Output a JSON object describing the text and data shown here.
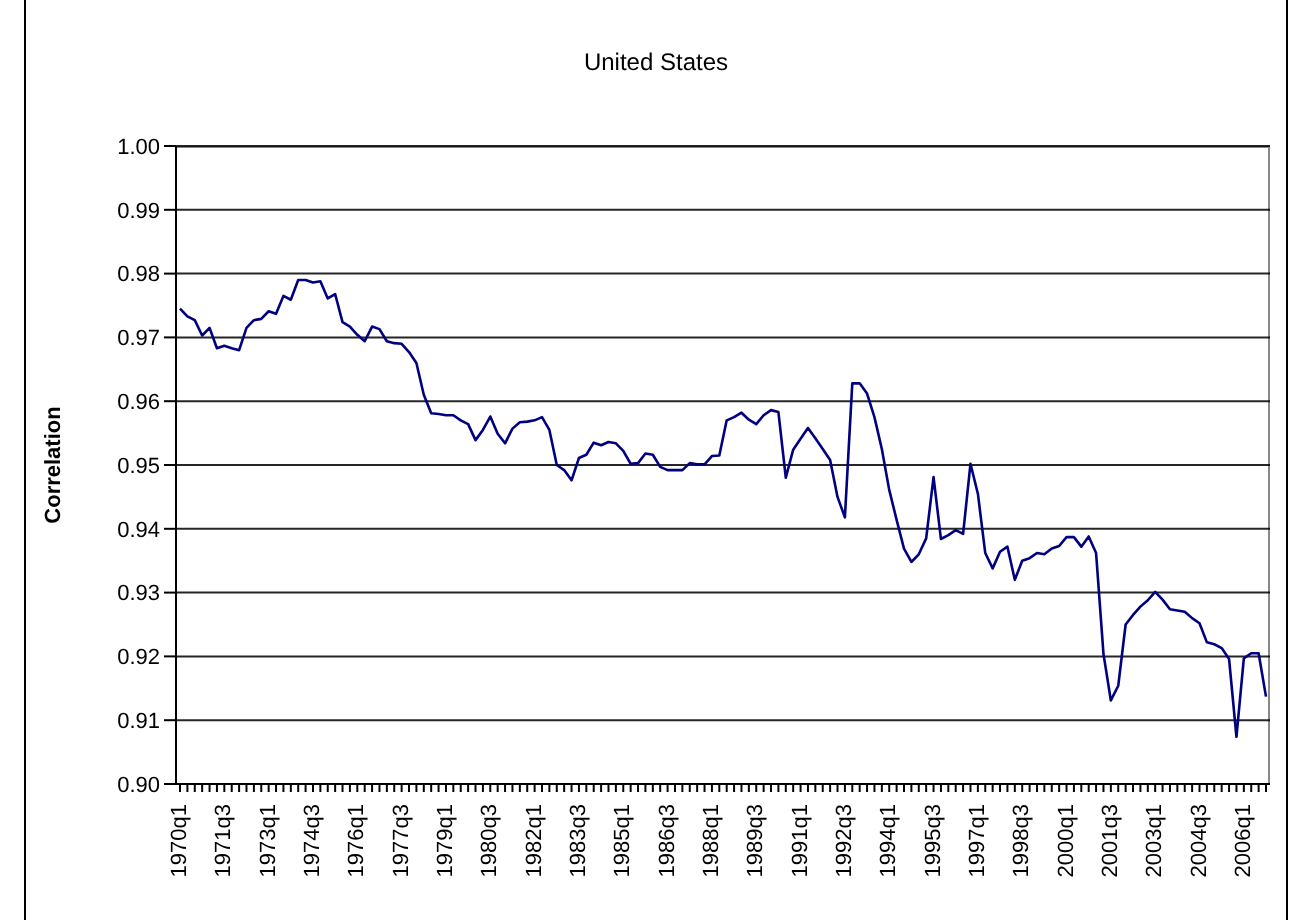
{
  "chart_data": {
    "type": "line",
    "title": "United States",
    "ylabel": "Correlation",
    "categories": [
      "1970q1",
      null,
      null,
      null,
      null,
      null,
      "1971q3",
      null,
      null,
      null,
      null,
      null,
      "1973q1",
      null,
      null,
      null,
      null,
      null,
      "1974q3",
      null,
      null,
      null,
      null,
      null,
      "1976q1",
      null,
      null,
      null,
      null,
      null,
      "1977q3",
      null,
      null,
      null,
      null,
      null,
      "1979q1",
      null,
      null,
      null,
      null,
      null,
      "1980q3",
      null,
      null,
      null,
      null,
      null,
      "1982q1",
      null,
      null,
      null,
      null,
      null,
      "1983q3",
      null,
      null,
      null,
      null,
      null,
      "1985q1",
      null,
      null,
      null,
      null,
      null,
      "1986q3",
      null,
      null,
      null,
      null,
      null,
      "1988q1",
      null,
      null,
      null,
      null,
      null,
      "1989q3",
      null,
      null,
      null,
      null,
      null,
      "1991q1",
      null,
      null,
      null,
      null,
      null,
      "1992q3",
      null,
      null,
      null,
      null,
      null,
      "1994q1",
      null,
      null,
      null,
      null,
      null,
      "1995q3",
      null,
      null,
      null,
      null,
      null,
      "1997q1",
      null,
      null,
      null,
      null,
      null,
      "1998q3",
      null,
      null,
      null,
      null,
      null,
      "2000q1",
      null,
      null,
      null,
      null,
      null,
      "2001q3",
      null,
      null,
      null,
      null,
      null,
      "2003q1",
      null,
      null,
      null,
      null,
      null,
      "2004q3",
      null,
      null,
      null,
      null,
      null,
      "2006q1",
      null,
      null,
      null
    ],
    "series": [
      {
        "color": "#000080",
        "values": [
          0.9745,
          0.9733,
          0.9727,
          0.9703,
          0.9715,
          0.9683,
          0.9687,
          0.9683,
          0.968,
          0.9715,
          0.9727,
          0.9729,
          0.9741,
          0.9737,
          0.9765,
          0.9759,
          0.979,
          0.979,
          0.9786,
          0.9788,
          0.9761,
          0.9768,
          0.9724,
          0.9717,
          0.9704,
          0.9694,
          0.9717,
          0.9713,
          0.9694,
          0.9691,
          0.969,
          0.9677,
          0.966,
          0.961,
          0.9581,
          0.958,
          0.9578,
          0.9578,
          0.957,
          0.9564,
          0.9539,
          0.9555,
          0.9576,
          0.9549,
          0.9534,
          0.9557,
          0.9567,
          0.9568,
          0.957,
          0.9575,
          0.9555,
          0.95,
          0.9492,
          0.9476,
          0.9511,
          0.9516,
          0.9535,
          0.9531,
          0.9536,
          0.9534,
          0.9522,
          0.9502,
          0.9503,
          0.9518,
          0.9516,
          0.9497,
          0.9492,
          0.9492,
          0.9492,
          0.9503,
          0.9501,
          0.9501,
          0.9514,
          0.9515,
          0.957,
          0.9575,
          0.9582,
          0.9571,
          0.9564,
          0.9578,
          0.9586,
          0.9583,
          0.948,
          0.9524,
          0.9541,
          0.9558,
          0.9542,
          0.9525,
          0.9508,
          0.945,
          0.9418,
          0.9628,
          0.9628,
          0.9612,
          0.9575,
          0.9525,
          0.9461,
          0.9414,
          0.9369,
          0.9348,
          0.936,
          0.9385,
          0.9481,
          0.9384,
          0.939,
          0.9398,
          0.9392,
          0.9502,
          0.9455,
          0.9362,
          0.9338,
          0.9364,
          0.9372,
          0.932,
          0.935,
          0.9354,
          0.9362,
          0.936,
          0.9369,
          0.9373,
          0.9387,
          0.9387,
          0.9372,
          0.9388,
          0.9362,
          0.9204,
          0.9131,
          0.9154,
          0.925,
          0.9265,
          0.9278,
          0.9288,
          0.9301,
          0.9289,
          0.9274,
          0.9272,
          0.927,
          0.926,
          0.9252,
          0.9222,
          0.9219,
          0.9213,
          0.9196,
          0.9074,
          0.9197,
          0.9205,
          0.9205,
          0.9137
        ]
      }
    ],
    "ylim": [
      0.9,
      1.0
    ],
    "yticks": [
      {
        "value": 0.9,
        "label": "0.90"
      },
      {
        "value": 0.91,
        "label": "0.91"
      },
      {
        "value": 0.92,
        "label": "0.92"
      },
      {
        "value": 0.93,
        "label": "0.93"
      },
      {
        "value": 0.94,
        "label": "0.94"
      },
      {
        "value": 0.95,
        "label": "0.95"
      },
      {
        "value": 0.96,
        "label": "0.96"
      },
      {
        "value": 0.97,
        "label": "0.97"
      },
      {
        "value": 0.98,
        "label": "0.98"
      },
      {
        "value": 0.99,
        "label": "0.99"
      },
      {
        "value": 1.0,
        "label": "1.00"
      }
    ],
    "grid": "y",
    "marker": "none",
    "line_style": "solid"
  }
}
